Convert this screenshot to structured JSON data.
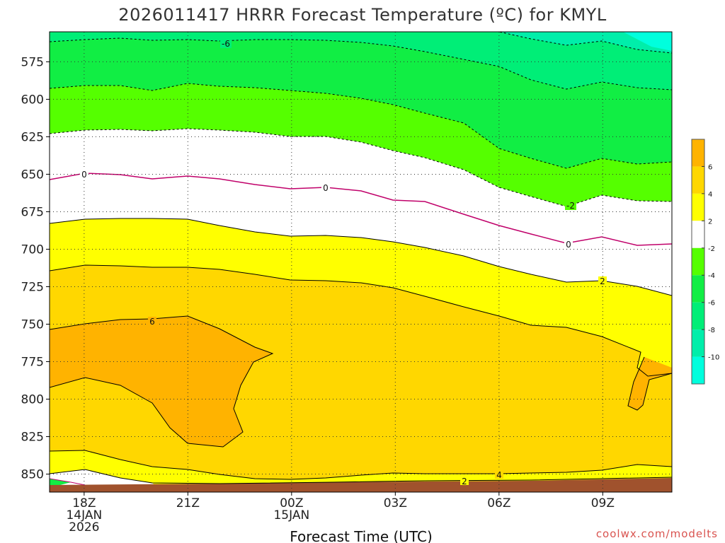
{
  "chart_data": {
    "type": "contour",
    "title": "2026011417 HRRR Forecast Temperature (ºC) for KMYL",
    "xlabel": "Forecast Time (UTC)",
    "ylabel": "",
    "credit": "coolwx.com/modelts",
    "x_ticks": [
      {
        "hour": 1,
        "lines": [
          "18Z",
          "14JAN",
          "2026"
        ]
      },
      {
        "hour": 4,
        "lines": [
          "21Z"
        ]
      },
      {
        "hour": 7,
        "lines": [
          "00Z",
          "15JAN"
        ]
      },
      {
        "hour": 10,
        "lines": [
          "03Z"
        ]
      },
      {
        "hour": 13,
        "lines": [
          "06Z"
        ]
      },
      {
        "hour": 16,
        "lines": [
          "09Z"
        ]
      }
    ],
    "xlim": [
      0,
      18
    ],
    "y_ticks": [
      575,
      600,
      625,
      650,
      675,
      700,
      725,
      750,
      775,
      800,
      825,
      850
    ],
    "ylim": [
      555,
      862
    ],
    "colorbar": {
      "labels": [
        "6",
        "4",
        "2",
        "-2",
        "-4",
        "-6",
        "-8",
        "-10"
      ],
      "bands": [
        {
          "min": 6,
          "max": 8,
          "color": "#ffb300"
        },
        {
          "min": 4,
          "max": 6,
          "color": "#ffd700"
        },
        {
          "min": 2,
          "max": 4,
          "color": "#ffff00"
        },
        {
          "min": -2,
          "max": 2,
          "color": "#ffffff"
        },
        {
          "min": -4,
          "max": -2,
          "color": "#55ff00"
        },
        {
          "min": -6,
          "max": -4,
          "color": "#11ee44"
        },
        {
          "min": -8,
          "max": -6,
          "color": "#00ee77"
        },
        {
          "min": -10,
          "max": -8,
          "color": "#00eeaa"
        },
        {
          "min": -12,
          "max": -10,
          "color": "#00ffdd"
        }
      ]
    },
    "contour_labels": [
      "-6",
      "0",
      "0",
      "-2",
      "0",
      "2",
      "6",
      "2",
      "4"
    ],
    "terrain_color": "#a0522d"
  }
}
